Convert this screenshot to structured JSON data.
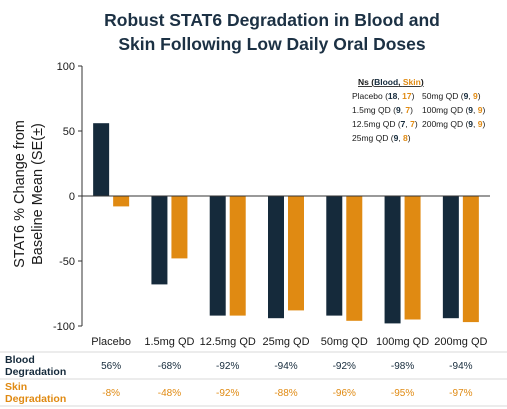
{
  "chart_data": {
    "type": "bar",
    "title": "Robust STAT6 Degradation in Blood and Skin Following Low Daily Oral Doses",
    "title_lines": [
      "Robust STAT6 Degradation in Blood and",
      "Skin Following Low Daily Oral Doses"
    ],
    "ylabel": "STAT6 % Change from Baseline Mean (SE(±)",
    "ylabel_lines": [
      "STAT6 % Change from",
      "Baseline Mean (SE(±)"
    ],
    "ylim": [
      -100,
      100
    ],
    "yticks": [
      100,
      50,
      0,
      -50,
      -100
    ],
    "categories": [
      "Placebo",
      "1.5mg QD",
      "12.5mg QD",
      "25mg QD",
      "50mg QD",
      "100mg QD",
      "200mg QD"
    ],
    "series": [
      {
        "name": "Blood",
        "color": "#152a3b",
        "values": [
          56,
          -68,
          -92,
          -94,
          -92,
          -98,
          -94
        ]
      },
      {
        "name": "Skin",
        "color": "#e08a12",
        "values": [
          -8,
          -48,
          -92,
          -88,
          -96,
          -95,
          -97
        ]
      }
    ],
    "legend": {
      "header": {
        "prefix": "Ns (",
        "blood": "Blood",
        "sep": ", ",
        "skin": "Skin",
        "suffix": ")"
      },
      "entries": [
        {
          "label": "Placebo",
          "blood": "18",
          "skin": "17"
        },
        {
          "label": "1.5mg QD",
          "blood": "9",
          "skin": "7"
        },
        {
          "label": "12.5mg QD",
          "blood": "7",
          "skin": "7"
        },
        {
          "label": "25mg QD",
          "blood": "9",
          "skin": "8"
        },
        {
          "label": "50mg QD",
          "blood": "9",
          "skin": "9"
        },
        {
          "label": "100mg QD",
          "blood": "9",
          "skin": "9"
        },
        {
          "label": "200mg QD",
          "blood": "9",
          "skin": "9"
        }
      ]
    },
    "table": {
      "rows": [
        {
          "label_lines": [
            "Blood",
            "Degradation"
          ],
          "color": "#152a3b",
          "cells": [
            "56%",
            "-68%",
            "-92%",
            "-94%",
            "-92%",
            "-98%",
            "-94%"
          ]
        },
        {
          "label_lines": [
            "Skin",
            "Degradation"
          ],
          "color": "#e08a12",
          "cells": [
            "-8%",
            "-48%",
            "-92%",
            "-88%",
            "-96%",
            "-95%",
            "-97%"
          ]
        }
      ]
    },
    "grid": false
  },
  "colors": {
    "blood": "#152a3b",
    "skin": "#e08a12",
    "title": "#1c3144",
    "axis": "#333333"
  }
}
